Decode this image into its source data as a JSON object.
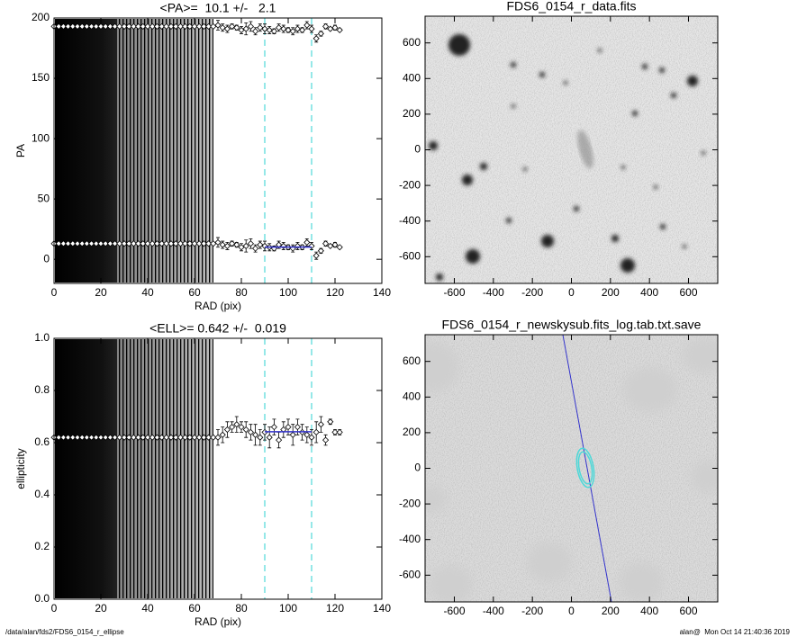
{
  "chart_data": [
    {
      "type": "scatter",
      "title": "<PA>=  10.1 +/-   2.1",
      "xlabel": "RAD (pix)",
      "ylabel": "PA",
      "xlim": [
        0,
        140
      ],
      "ylim": [
        -20,
        200
      ],
      "xticks": [
        0,
        20,
        40,
        60,
        80,
        100,
        120,
        140
      ],
      "yticks": [
        0,
        50,
        100,
        150,
        200
      ],
      "x": [
        0,
        2,
        4,
        6,
        8,
        10,
        12,
        14,
        16,
        18,
        20,
        22,
        24,
        26,
        28,
        30,
        32,
        34,
        36,
        38,
        40,
        42,
        44,
        46,
        48,
        50,
        52,
        54,
        56,
        58,
        60,
        62,
        64,
        66,
        68,
        70,
        72,
        74,
        76,
        78,
        80,
        82,
        84,
        86,
        88,
        90,
        92,
        94,
        96,
        98,
        100,
        102,
        104,
        106,
        108,
        110,
        112,
        114,
        116,
        118,
        120,
        122
      ],
      "series": [
        {
          "color": "#000000",
          "values": [
            13,
            13,
            13,
            13,
            13,
            13,
            13,
            13,
            13,
            13,
            13,
            13,
            13,
            13,
            13,
            13,
            13,
            13,
            13,
            13,
            13,
            13,
            13,
            13,
            13,
            13,
            13,
            13,
            13,
            13,
            13,
            13,
            13,
            13,
            13,
            14,
            12,
            11,
            13,
            12,
            10,
            11,
            13,
            9,
            12,
            11,
            10,
            9,
            12,
            11,
            10,
            9,
            11,
            10,
            14,
            11,
            3,
            7,
            13,
            11,
            12,
            10
          ],
          "errors": [
            0,
            0,
            0,
            0,
            0,
            0,
            0,
            0,
            0,
            0,
            0,
            0,
            0,
            0,
            0,
            0,
            0,
            0,
            0,
            0,
            0,
            0,
            0,
            0,
            0,
            0,
            0,
            0,
            0,
            0,
            0,
            0,
            0,
            0,
            0,
            4,
            3,
            3,
            2,
            2,
            3,
            5,
            4,
            3,
            3,
            4,
            3,
            2,
            3,
            3,
            2,
            3,
            3,
            2,
            3,
            3,
            3,
            2,
            2,
            1,
            2,
            1
          ]
        },
        {
          "color": "#000000",
          "values": [
            193,
            193,
            193,
            193,
            193,
            193,
            193,
            193,
            193,
            193,
            193,
            193,
            193,
            193,
            193,
            193,
            193,
            193,
            193,
            193,
            193,
            193,
            193,
            193,
            193,
            193,
            193,
            193,
            193,
            193,
            193,
            193,
            193,
            193,
            193,
            194,
            192,
            191,
            193,
            192,
            190,
            191,
            193,
            189,
            192,
            191,
            190,
            189,
            192,
            191,
            190,
            189,
            191,
            190,
            194,
            191,
            183,
            187,
            193,
            191,
            192,
            190
          ],
          "errors": [
            0,
            0,
            0,
            0,
            0,
            0,
            0,
            0,
            0,
            0,
            0,
            0,
            0,
            0,
            0,
            0,
            0,
            0,
            0,
            0,
            0,
            0,
            0,
            0,
            0,
            0,
            0,
            0,
            0,
            0,
            0,
            0,
            0,
            0,
            0,
            4,
            3,
            3,
            2,
            2,
            3,
            5,
            4,
            3,
            3,
            4,
            3,
            2,
            3,
            3,
            2,
            3,
            3,
            2,
            3,
            3,
            3,
            2,
            2,
            1,
            2,
            1
          ]
        }
      ],
      "fit": {
        "color": "#3333cc",
        "value": 10.1,
        "x": [
          90,
          110
        ]
      },
      "vlines": {
        "color": "#4fd8d8",
        "x": [
          90,
          110
        ]
      }
    },
    {
      "type": "image",
      "title": "FDS6_0154_r_data.fits",
      "xlim": [
        -750,
        750
      ],
      "ylim": [
        -750,
        750
      ],
      "xticks": [
        -600,
        -400,
        -200,
        0,
        200,
        400,
        600
      ],
      "yticks": [
        -600,
        -400,
        -200,
        0,
        200,
        400,
        600
      ]
    },
    {
      "type": "scatter",
      "title": "<ELL>= 0.642 +/-  0.019",
      "xlabel": "RAD (pix)",
      "ylabel": "ellipticity",
      "xlim": [
        0,
        140
      ],
      "ylim": [
        0,
        1
      ],
      "xticks": [
        0,
        20,
        40,
        60,
        80,
        100,
        120,
        140
      ],
      "yticks": [
        {
          "value": 0,
          "label": "0.0"
        },
        0.2,
        0.4,
        0.6,
        0.8,
        {
          "value": 1,
          "label": "1.0"
        }
      ],
      "x": [
        0,
        2,
        4,
        6,
        8,
        10,
        12,
        14,
        16,
        18,
        20,
        22,
        24,
        26,
        28,
        30,
        32,
        34,
        36,
        38,
        40,
        42,
        44,
        46,
        48,
        50,
        52,
        54,
        56,
        58,
        60,
        62,
        64,
        66,
        68,
        70,
        72,
        74,
        76,
        78,
        80,
        82,
        84,
        86,
        88,
        90,
        92,
        94,
        96,
        98,
        100,
        102,
        104,
        106,
        108,
        110,
        112,
        114,
        116,
        118,
        120,
        122
      ],
      "series": [
        {
          "color": "#000000",
          "values": [
            0.62,
            0.62,
            0.62,
            0.62,
            0.62,
            0.62,
            0.62,
            0.62,
            0.62,
            0.62,
            0.62,
            0.62,
            0.62,
            0.62,
            0.62,
            0.62,
            0.62,
            0.62,
            0.62,
            0.62,
            0.62,
            0.62,
            0.62,
            0.62,
            0.62,
            0.62,
            0.62,
            0.62,
            0.62,
            0.62,
            0.62,
            0.62,
            0.62,
            0.62,
            0.62,
            0.62,
            0.63,
            0.65,
            0.66,
            0.67,
            0.66,
            0.65,
            0.64,
            0.63,
            0.62,
            0.64,
            0.62,
            0.66,
            0.61,
            0.65,
            0.66,
            0.63,
            0.66,
            0.64,
            0.63,
            0.62,
            0.64,
            0.67,
            0.61,
            0.68,
            0.64,
            0.64
          ],
          "errors": [
            0,
            0,
            0,
            0,
            0,
            0,
            0,
            0,
            0,
            0,
            0,
            0,
            0,
            0,
            0,
            0,
            0,
            0,
            0,
            0,
            0,
            0,
            0,
            0,
            0,
            0,
            0,
            0,
            0,
            0,
            0,
            0,
            0,
            0,
            0,
            0.03,
            0.03,
            0.03,
            0.02,
            0.03,
            0.02,
            0.03,
            0.03,
            0.04,
            0.03,
            0.03,
            0.04,
            0.03,
            0.03,
            0.03,
            0.03,
            0.04,
            0.03,
            0.03,
            0.03,
            0.03,
            0.04,
            0.03,
            0.02,
            0.01,
            0.01,
            0.01
          ]
        }
      ],
      "fit": {
        "color": "#3333cc",
        "value": 0.642,
        "x": [
          90,
          110
        ]
      },
      "vlines": {
        "color": "#4fd8d8",
        "x": [
          90,
          110
        ]
      }
    },
    {
      "type": "image",
      "title": "FDS6_0154_r_newskysub.fits_log.tab.txt.save",
      "xlim": [
        -750,
        750
      ],
      "ylim": [
        -750,
        750
      ],
      "xticks": [
        -600,
        -400,
        -200,
        0,
        200,
        400,
        600
      ],
      "yticks": [
        -600,
        -400,
        -200,
        0,
        200,
        400,
        600
      ]
    }
  ],
  "footer": {
    "left": "/data/alan/fds2/FDS6_0154_r_ellipse",
    "right": "alan@  Mon Oct 14 21:40:36 2019"
  }
}
